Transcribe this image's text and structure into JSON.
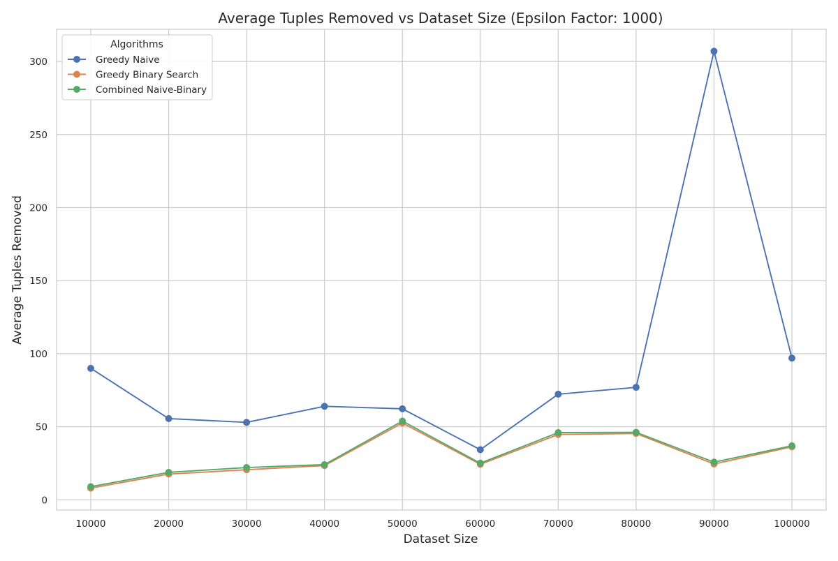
{
  "chart_data": {
    "type": "line",
    "title": "Average Tuples Removed vs Dataset Size (Epsilon Factor: 1000)",
    "xlabel": "Dataset Size",
    "ylabel": "Average Tuples Removed",
    "categories": [
      "10000",
      "20000",
      "30000",
      "40000",
      "50000",
      "60000",
      "70000",
      "80000",
      "90000",
      "100000"
    ],
    "ylim": [
      -7,
      322
    ],
    "yticks": [
      0,
      50,
      100,
      150,
      200,
      250,
      300
    ],
    "grid": true,
    "legend": {
      "title": "Algorithms",
      "placement": "upper-left"
    },
    "series": [
      {
        "name": "Greedy Naive",
        "color": "#4c72b0",
        "values": [
          90,
          55.6,
          53,
          64,
          62.3,
          34.3,
          72.3,
          77,
          307,
          97
        ]
      },
      {
        "name": "Greedy Binary Search",
        "color": "#dd8452",
        "values": [
          8,
          17.6,
          20.6,
          23.4,
          52.6,
          24.3,
          44.7,
          45.4,
          24.5,
          36.3
        ]
      },
      {
        "name": "Combined Naive-Binary",
        "color": "#55a868",
        "values": [
          9,
          18.8,
          22.1,
          24.1,
          53.9,
          25.1,
          46,
          46.2,
          25.8,
          37
        ]
      }
    ]
  }
}
